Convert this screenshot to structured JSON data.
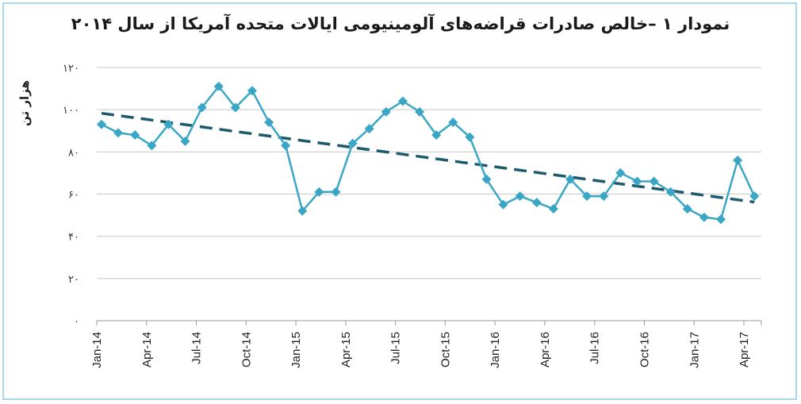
{
  "chart_data": {
    "type": "line",
    "title": "نمودار ۱ –خالص صادرات قراضه‌های آلومینیومی ایالات متحده آمریکا از سال ۲۰۱۴",
    "ylabel": "هزار تن",
    "ylim": [
      0,
      120
    ],
    "yticks": [
      "۰",
      "۲۰",
      "۴۰",
      "۶۰",
      "۸۰",
      "۱۰۰",
      "۱۲۰"
    ],
    "grid": true,
    "x_tick_labels": [
      "Jan-14",
      "Apr-14",
      "Jul-14",
      "Oct-14",
      "Jan-15",
      "Apr-15",
      "Jul-15",
      "Oct-15",
      "Jan-16",
      "Apr-16",
      "Jul-16",
      "Oct-16",
      "Jan-17",
      "Apr-17"
    ],
    "x": [
      "Jan-14",
      "Feb-14",
      "Mar-14",
      "Apr-14",
      "May-14",
      "Jun-14",
      "Jul-14",
      "Aug-14",
      "Sep-14",
      "Oct-14",
      "Nov-14",
      "Dec-14",
      "Jan-15",
      "Feb-15",
      "Mar-15",
      "Apr-15",
      "May-15",
      "Jun-15",
      "Jul-15",
      "Aug-15",
      "Sep-15",
      "Oct-15",
      "Nov-15",
      "Dec-15",
      "Jan-16",
      "Feb-16",
      "Mar-16",
      "Apr-16",
      "May-16",
      "Jun-16",
      "Jul-16",
      "Aug-16",
      "Sep-16",
      "Oct-16",
      "Nov-16",
      "Dec-16",
      "Jan-17",
      "Feb-17",
      "Mar-17",
      "Apr-17"
    ],
    "series": [
      {
        "values": [
          93,
          89,
          88,
          83,
          93,
          85,
          101,
          111,
          101,
          109,
          94,
          83,
          52,
          61,
          61,
          84,
          91,
          99,
          104,
          99,
          88,
          94,
          87,
          67,
          55,
          59,
          56,
          53,
          67,
          59,
          59,
          70,
          66,
          66,
          61,
          53,
          49,
          48,
          76,
          59
        ],
        "color": "#3aa6c6"
      },
      {
        "trendline": [
          98.3,
          56.2
        ],
        "color": "#1d5a6e"
      }
    ]
  }
}
